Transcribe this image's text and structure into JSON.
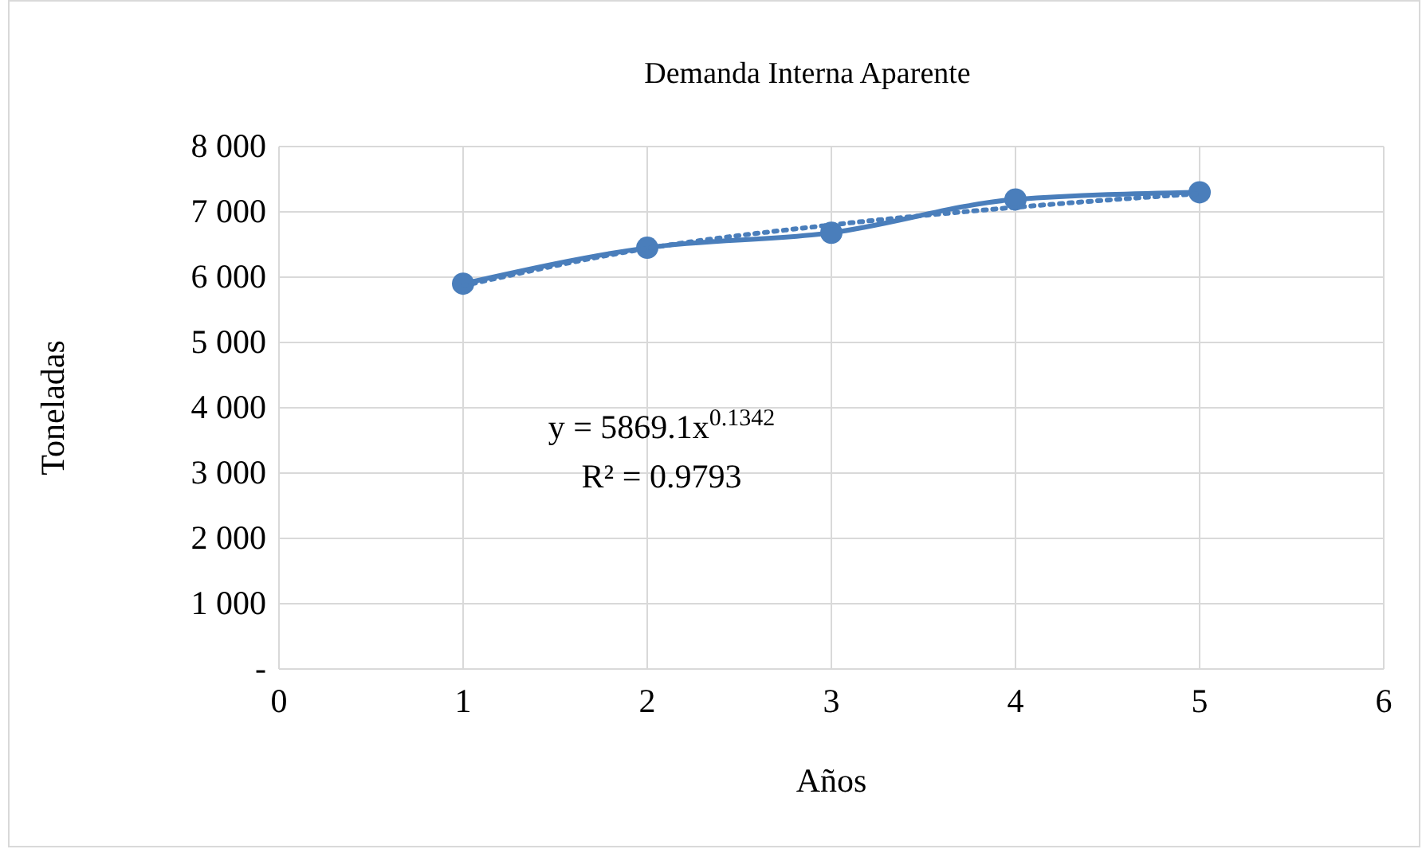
{
  "chart_data": {
    "type": "line",
    "title": "Demanda Interna Aparente",
    "xlabel": "Años",
    "ylabel": "Toneladas",
    "x": [
      1,
      2,
      3,
      4,
      5
    ],
    "series": [
      {
        "color": "#4a7ebb",
        "values": [
          5900,
          6450,
          6680,
          7190,
          7300
        ],
        "marker": "circle",
        "line_style": "solid"
      },
      {
        "type": "line",
        "color": "#4a7ebb",
        "x": [
          1,
          2,
          3,
          4,
          5
        ],
        "values": [
          5870,
          6440,
          6800,
          7070,
          7280
        ],
        "marker": "none",
        "line_style": "dotted"
      }
    ],
    "xlim": [
      0,
      6
    ],
    "xticks": [
      0,
      1,
      2,
      3,
      4,
      5,
      6
    ],
    "ylim": [
      0,
      8000
    ],
    "yticks": [
      {
        "value": 0,
        "label": "-"
      },
      {
        "value": 1000,
        "label": "1 000"
      },
      {
        "value": 2000,
        "label": "2 000"
      },
      {
        "value": 3000,
        "label": "3 000"
      },
      {
        "value": 4000,
        "label": "4 000"
      },
      {
        "value": 5000,
        "label": "5 000"
      },
      {
        "value": 6000,
        "label": "6 000"
      },
      {
        "value": 7000,
        "label": "7 000"
      },
      {
        "value": 8000,
        "label": "8 000"
      }
    ],
    "grid": true,
    "annotations": [
      "y = 5869.1x$^{0.1342}$",
      "R² = 0.9793"
    ]
  }
}
